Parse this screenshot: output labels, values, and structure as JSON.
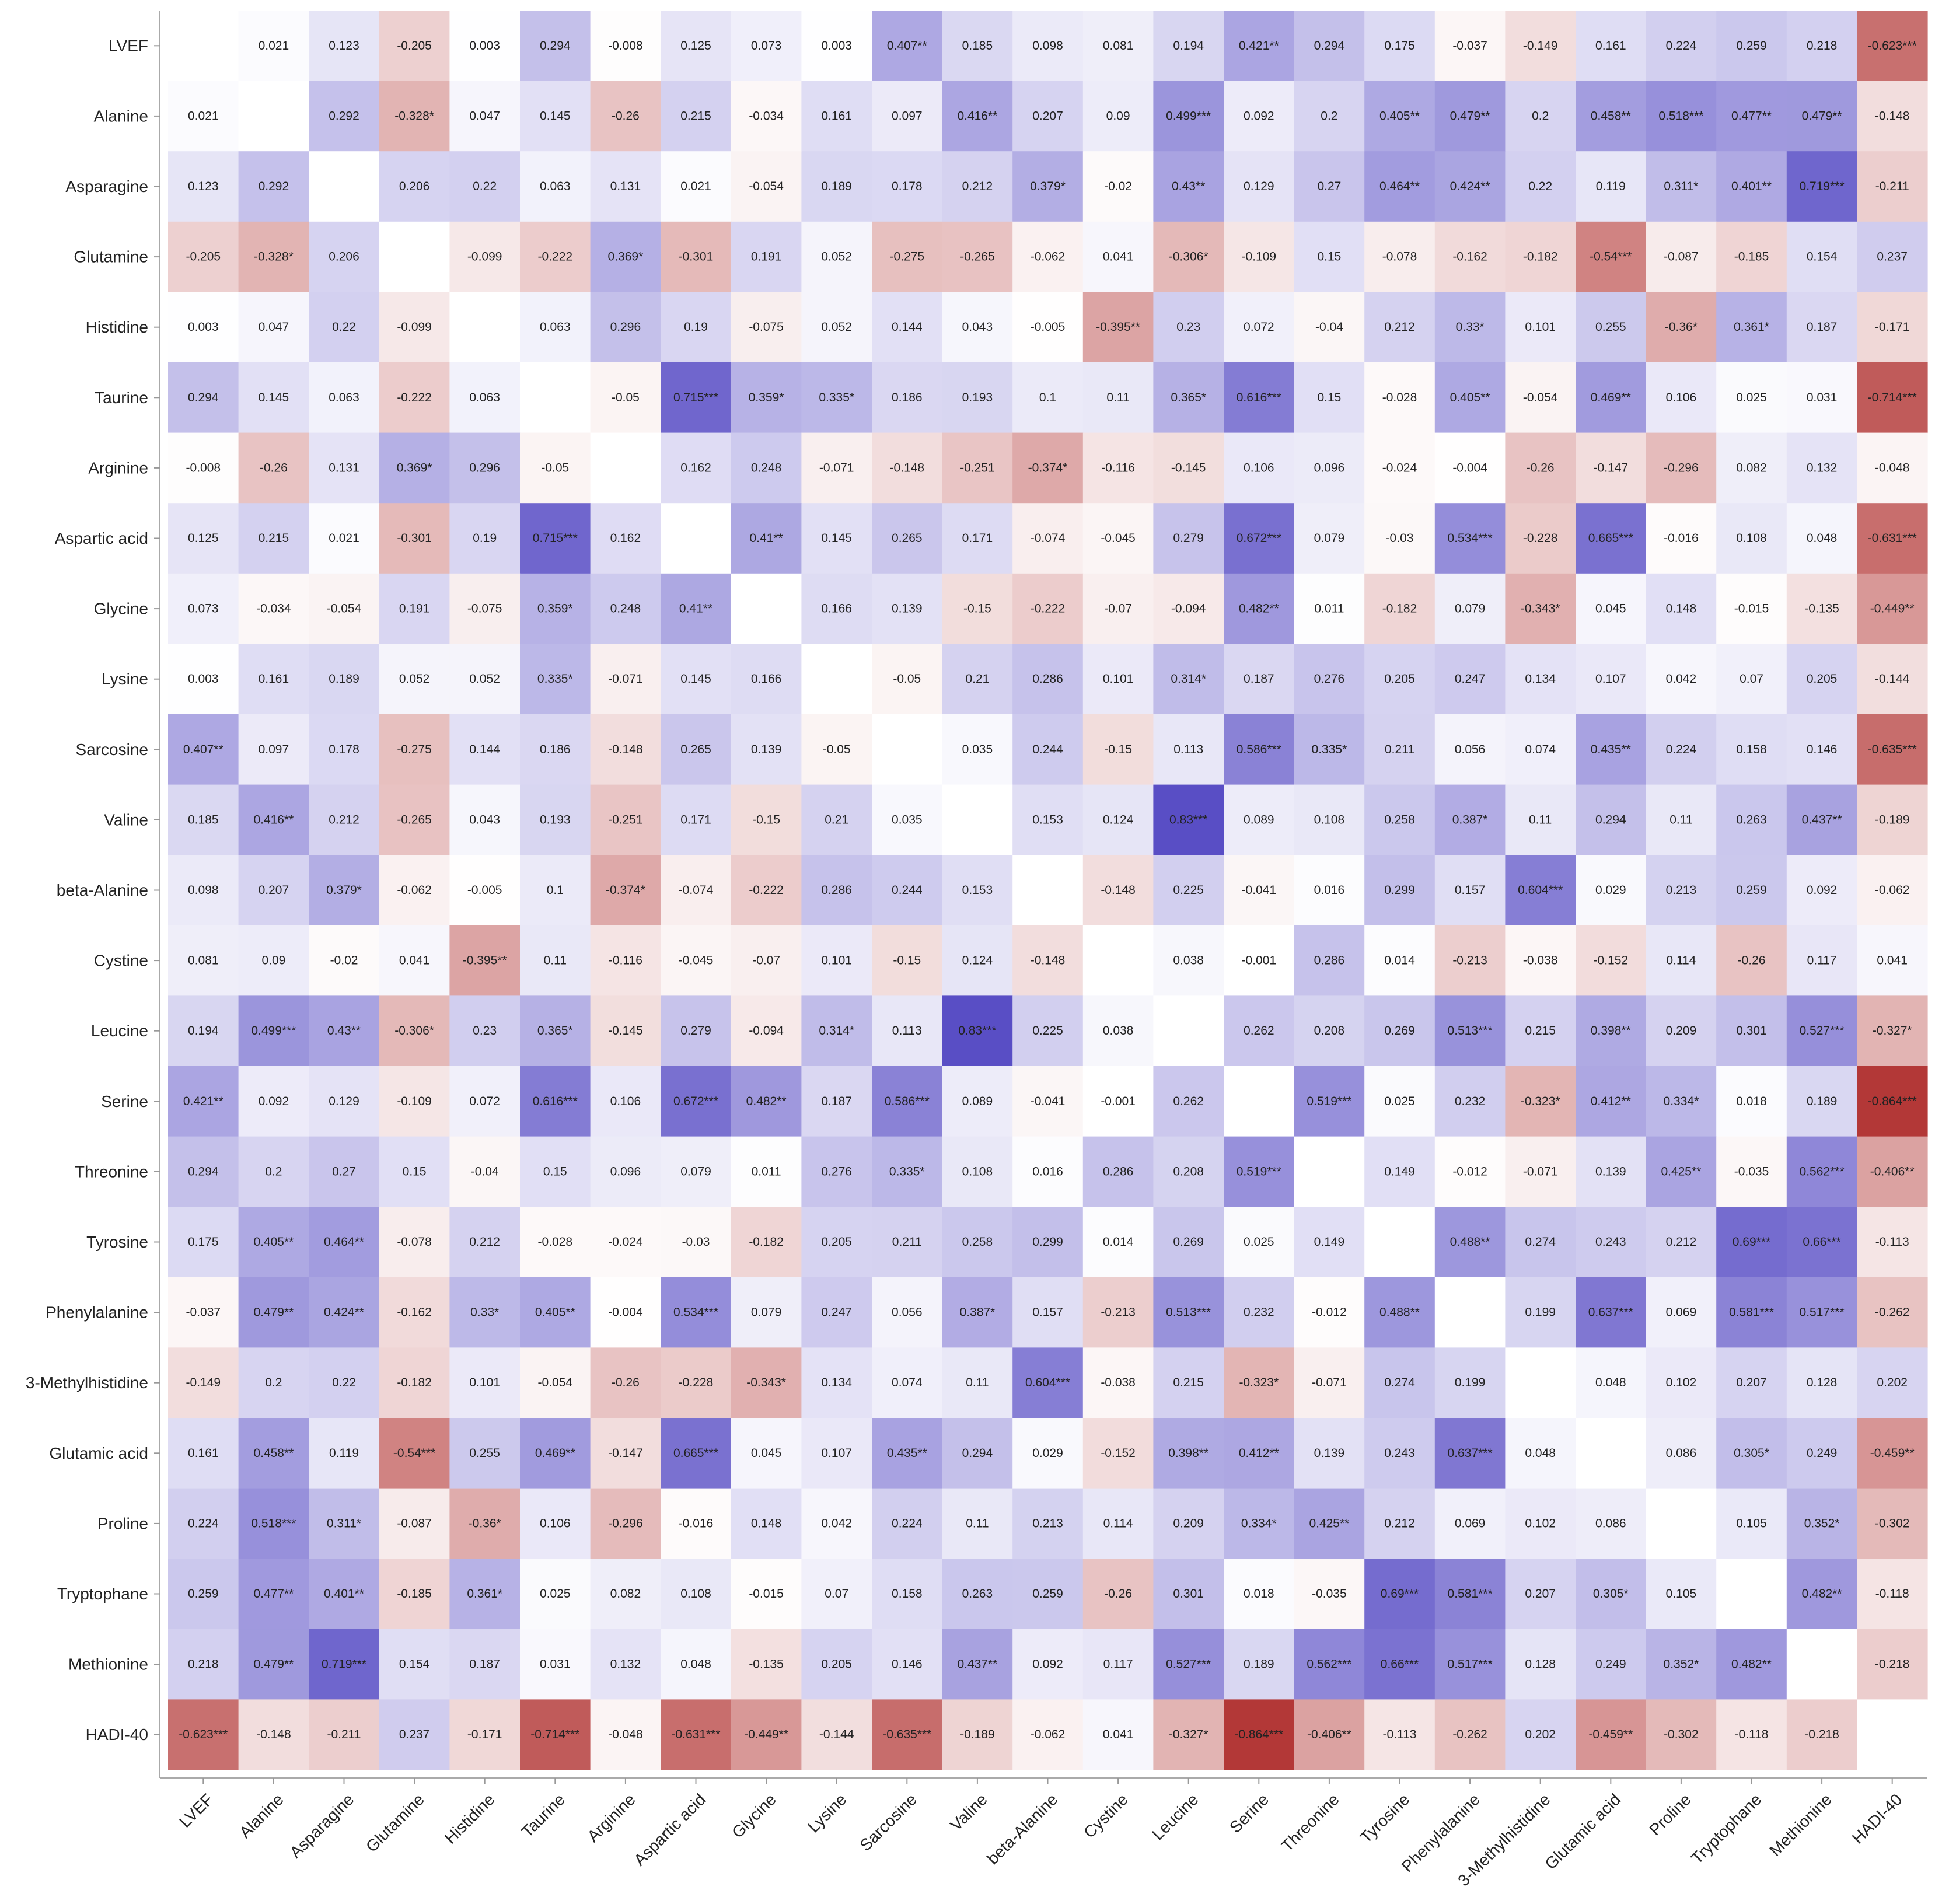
{
  "chart_data": {
    "type": "heatmap",
    "title": "",
    "xlabel": "",
    "ylabel": "",
    "variables": [
      "LVEF",
      "Alanine",
      "Asparagine",
      "Glutamine",
      "Histidine",
      "Taurine",
      "Arginine",
      "Aspartic acid",
      "Glycine",
      "Lysine",
      "Sarcosine",
      "Valine",
      "beta-Alanine",
      "Cystine",
      "Leucine",
      "Serine",
      "Threonine",
      "Tyrosine",
      "Phenylalanine",
      "3-Methylhistidine",
      "Glutamic acid",
      "Proline",
      "Tryptophane",
      "Methionine",
      "HADI-40"
    ],
    "value_range": [
      -0.9,
      0.9
    ],
    "colors": {
      "negative": "#b0302f",
      "zero": "#ffffff",
      "positive": "#4b3fc0"
    },
    "cells": [
      [
        "",
        "0.021",
        "0.123",
        "-0.205",
        "0.003",
        "0.294",
        "-0.008",
        "0.125",
        "0.073",
        "0.003",
        "0.407**",
        "0.185",
        "0.098",
        "0.081",
        "0.194",
        "0.421**",
        "0.294",
        "0.175",
        "-0.037",
        "-0.149",
        "0.161",
        "0.224",
        "0.259",
        "0.218",
        "-0.623***"
      ],
      [
        "0.021",
        "",
        "0.292",
        "-0.328*",
        "0.047",
        "0.145",
        "-0.26",
        "0.215",
        "-0.034",
        "0.161",
        "0.097",
        "0.416**",
        "0.207",
        "0.09",
        "0.499***",
        "0.092",
        "0.2",
        "0.405**",
        "0.479**",
        "0.2",
        "0.458**",
        "0.518***",
        "0.477**",
        "0.479**",
        "-0.148"
      ],
      [
        "0.123",
        "0.292",
        "",
        "0.206",
        "0.22",
        "0.063",
        "0.131",
        "0.021",
        "-0.054",
        "0.189",
        "0.178",
        "0.212",
        "0.379*",
        "-0.02",
        "0.43**",
        "0.129",
        "0.27",
        "0.464**",
        "0.424**",
        "0.22",
        "0.119",
        "0.311*",
        "0.401**",
        "0.719***",
        "-0.211"
      ],
      [
        "-0.205",
        "-0.328*",
        "0.206",
        "",
        "-0.099",
        "-0.222",
        "0.369*",
        "-0.301",
        "0.191",
        "0.052",
        "-0.275",
        "-0.265",
        "-0.062",
        "0.041",
        "-0.306*",
        "-0.109",
        "0.15",
        "-0.078",
        "-0.162",
        "-0.182",
        "-0.54***",
        "-0.087",
        "-0.185",
        "0.154",
        "0.237"
      ],
      [
        "0.003",
        "0.047",
        "0.22",
        "-0.099",
        "",
        "0.063",
        "0.296",
        "0.19",
        "-0.075",
        "0.052",
        "0.144",
        "0.043",
        "-0.005",
        "-0.395**",
        "0.23",
        "0.072",
        "-0.04",
        "0.212",
        "0.33*",
        "0.101",
        "0.255",
        "-0.36*",
        "0.361*",
        "0.187",
        "-0.171"
      ],
      [
        "0.294",
        "0.145",
        "0.063",
        "-0.222",
        "0.063",
        "",
        "-0.05",
        "0.715***",
        "0.359*",
        "0.335*",
        "0.186",
        "0.193",
        "0.1",
        "0.11",
        "0.365*",
        "0.616***",
        "0.15",
        "-0.028",
        "0.405**",
        "-0.054",
        "0.469**",
        "0.106",
        "0.025",
        "0.031",
        "-0.714***"
      ],
      [
        "-0.008",
        "-0.26",
        "0.131",
        "0.369*",
        "0.296",
        "-0.05",
        "",
        "0.162",
        "0.248",
        "-0.071",
        "-0.148",
        "-0.251",
        "-0.374*",
        "-0.116",
        "-0.145",
        "0.106",
        "0.096",
        "-0.024",
        "-0.004",
        "-0.26",
        "-0.147",
        "-0.296",
        "0.082",
        "0.132",
        "-0.048"
      ],
      [
        "0.125",
        "0.215",
        "0.021",
        "-0.301",
        "0.19",
        "0.715***",
        "0.162",
        "",
        "0.41**",
        "0.145",
        "0.265",
        "0.171",
        "-0.074",
        "-0.045",
        "0.279",
        "0.672***",
        "0.079",
        "-0.03",
        "0.534***",
        "-0.228",
        "0.665***",
        "-0.016",
        "0.108",
        "0.048",
        "-0.631***"
      ],
      [
        "0.073",
        "-0.034",
        "-0.054",
        "0.191",
        "-0.075",
        "0.359*",
        "0.248",
        "0.41**",
        "",
        "0.166",
        "0.139",
        "-0.15",
        "-0.222",
        "-0.07",
        "-0.094",
        "0.482**",
        "0.011",
        "-0.182",
        "0.079",
        "-0.343*",
        "0.045",
        "0.148",
        "-0.015",
        "-0.135",
        "-0.449**"
      ],
      [
        "0.003",
        "0.161",
        "0.189",
        "0.052",
        "0.052",
        "0.335*",
        "-0.071",
        "0.145",
        "0.166",
        "",
        "-0.05",
        "0.21",
        "0.286",
        "0.101",
        "0.314*",
        "0.187",
        "0.276",
        "0.205",
        "0.247",
        "0.134",
        "0.107",
        "0.042",
        "0.07",
        "0.205",
        "-0.144"
      ],
      [
        "0.407**",
        "0.097",
        "0.178",
        "-0.275",
        "0.144",
        "0.186",
        "-0.148",
        "0.265",
        "0.139",
        "-0.05",
        "",
        "0.035",
        "0.244",
        "-0.15",
        "0.113",
        "0.586***",
        "0.335*",
        "0.211",
        "0.056",
        "0.074",
        "0.435**",
        "0.224",
        "0.158",
        "0.146",
        "-0.635***"
      ],
      [
        "0.185",
        "0.416**",
        "0.212",
        "-0.265",
        "0.043",
        "0.193",
        "-0.251",
        "0.171",
        "-0.15",
        "0.21",
        "0.035",
        "",
        "0.153",
        "0.124",
        "0.83***",
        "0.089",
        "0.108",
        "0.258",
        "0.387*",
        "0.11",
        "0.294",
        "0.11",
        "0.263",
        "0.437**",
        "-0.189"
      ],
      [
        "0.098",
        "0.207",
        "0.379*",
        "-0.062",
        "-0.005",
        "0.1",
        "-0.374*",
        "-0.074",
        "-0.222",
        "0.286",
        "0.244",
        "0.153",
        "",
        "-0.148",
        "0.225",
        "-0.041",
        "0.016",
        "0.299",
        "0.157",
        "0.604***",
        "0.029",
        "0.213",
        "0.259",
        "0.092",
        "-0.062"
      ],
      [
        "0.081",
        "0.09",
        "-0.02",
        "0.041",
        "-0.395**",
        "0.11",
        "-0.116",
        "-0.045",
        "-0.07",
        "0.101",
        "-0.15",
        "0.124",
        "-0.148",
        "",
        "0.038",
        "-0.001",
        "0.286",
        "0.014",
        "-0.213",
        "-0.038",
        "-0.152",
        "0.114",
        "-0.26",
        "0.117",
        "0.041"
      ],
      [
        "0.194",
        "0.499***",
        "0.43**",
        "-0.306*",
        "0.23",
        "0.365*",
        "-0.145",
        "0.279",
        "-0.094",
        "0.314*",
        "0.113",
        "0.83***",
        "0.225",
        "0.038",
        "",
        "0.262",
        "0.208",
        "0.269",
        "0.513***",
        "0.215",
        "0.398**",
        "0.209",
        "0.301",
        "0.527***",
        "-0.327*"
      ],
      [
        "0.421**",
        "0.092",
        "0.129",
        "-0.109",
        "0.072",
        "0.616***",
        "0.106",
        "0.672***",
        "0.482**",
        "0.187",
        "0.586***",
        "0.089",
        "-0.041",
        "-0.001",
        "0.262",
        "",
        "0.519***",
        "0.025",
        "0.232",
        "-0.323*",
        "0.412**",
        "0.334*",
        "0.018",
        "0.189",
        "-0.864***"
      ],
      [
        "0.294",
        "0.2",
        "0.27",
        "0.15",
        "-0.04",
        "0.15",
        "0.096",
        "0.079",
        "0.011",
        "0.276",
        "0.335*",
        "0.108",
        "0.016",
        "0.286",
        "0.208",
        "0.519***",
        "",
        "0.149",
        "-0.012",
        "-0.071",
        "0.139",
        "0.425**",
        "-0.035",
        "0.562***",
        "-0.406**"
      ],
      [
        "0.175",
        "0.405**",
        "0.464**",
        "-0.078",
        "0.212",
        "-0.028",
        "-0.024",
        "-0.03",
        "-0.182",
        "0.205",
        "0.211",
        "0.258",
        "0.299",
        "0.014",
        "0.269",
        "0.025",
        "0.149",
        "",
        "0.488**",
        "0.274",
        "0.243",
        "0.212",
        "0.69***",
        "0.66***",
        "-0.113"
      ],
      [
        "-0.037",
        "0.479**",
        "0.424**",
        "-0.162",
        "0.33*",
        "0.405**",
        "-0.004",
        "0.534***",
        "0.079",
        "0.247",
        "0.056",
        "0.387*",
        "0.157",
        "-0.213",
        "0.513***",
        "0.232",
        "-0.012",
        "0.488**",
        "",
        "0.199",
        "0.637***",
        "0.069",
        "0.581***",
        "0.517***",
        "-0.262"
      ],
      [
        "-0.149",
        "0.2",
        "0.22",
        "-0.182",
        "0.101",
        "-0.054",
        "-0.26",
        "-0.228",
        "-0.343*",
        "0.134",
        "0.074",
        "0.11",
        "0.604***",
        "-0.038",
        "0.215",
        "-0.323*",
        "-0.071",
        "0.274",
        "0.199",
        "",
        "0.048",
        "0.102",
        "0.207",
        "0.128",
        "0.202"
      ],
      [
        "0.161",
        "0.458**",
        "0.119",
        "-0.54***",
        "0.255",
        "0.469**",
        "-0.147",
        "0.665***",
        "0.045",
        "0.107",
        "0.435**",
        "0.294",
        "0.029",
        "-0.152",
        "0.398**",
        "0.412**",
        "0.139",
        "0.243",
        "0.637***",
        "0.048",
        "",
        "0.086",
        "0.305*",
        "0.249",
        "-0.459**"
      ],
      [
        "0.224",
        "0.518***",
        "0.311*",
        "-0.087",
        "-0.36*",
        "0.106",
        "-0.296",
        "-0.016",
        "0.148",
        "0.042",
        "0.224",
        "0.11",
        "0.213",
        "0.114",
        "0.209",
        "0.334*",
        "0.425**",
        "0.212",
        "0.069",
        "0.102",
        "0.086",
        "",
        "0.105",
        "0.352*",
        "-0.302"
      ],
      [
        "0.259",
        "0.477**",
        "0.401**",
        "-0.185",
        "0.361*",
        "0.025",
        "0.082",
        "0.108",
        "-0.015",
        "0.07",
        "0.158",
        "0.263",
        "0.259",
        "-0.26",
        "0.301",
        "0.018",
        "-0.035",
        "0.69***",
        "0.581***",
        "0.207",
        "0.305*",
        "0.105",
        "",
        "0.482**",
        "-0.118"
      ],
      [
        "0.218",
        "0.479**",
        "0.719***",
        "0.154",
        "0.187",
        "0.031",
        "0.132",
        "0.048",
        "-0.135",
        "0.205",
        "0.146",
        "0.437**",
        "0.092",
        "0.117",
        "0.527***",
        "0.189",
        "0.562***",
        "0.66***",
        "0.517***",
        "0.128",
        "0.249",
        "0.352*",
        "0.482**",
        "",
        "-0.218"
      ],
      [
        "-0.623***",
        "-0.148",
        "-0.211",
        "0.237",
        "-0.171",
        "-0.714***",
        "-0.048",
        "-0.631***",
        "-0.449**",
        "-0.144",
        "-0.635***",
        "-0.189",
        "-0.062",
        "0.041",
        "-0.327*",
        "-0.864***",
        "-0.406**",
        "-0.113",
        "-0.262",
        "0.202",
        "-0.459**",
        "-0.302",
        "-0.118",
        "-0.218",
        ""
      ]
    ]
  }
}
